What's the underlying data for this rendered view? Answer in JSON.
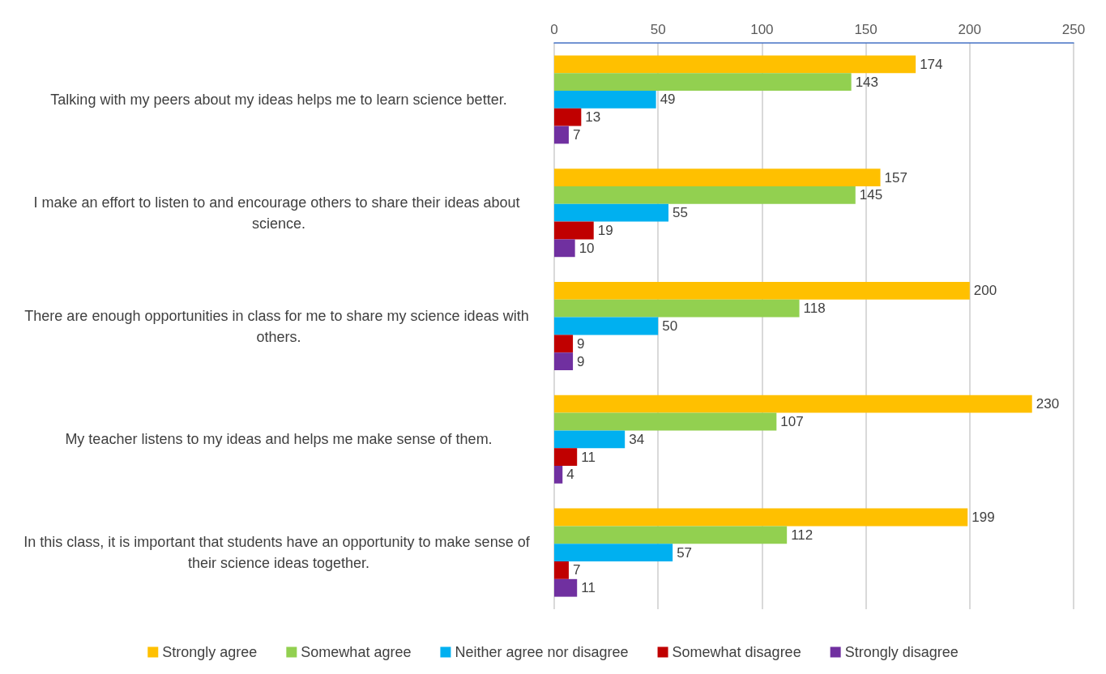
{
  "chart_data": {
    "type": "bar",
    "orientation": "horizontal",
    "categories": [
      "Talking with my peers about my ideas helps me to learn science better.",
      "I make an effort to listen to and encourage others to share their ideas about science.",
      "There are enough opportunities in class for me to share my science ideas with others.",
      "My teacher listens to my ideas and helps me make sense of them.",
      "In this class, it is important that students have an opportunity to make sense of their science ideas together."
    ],
    "series": [
      {
        "name": "Strongly agree",
        "color": "#ffc000",
        "values": [
          174,
          157,
          200,
          230,
          199
        ]
      },
      {
        "name": "Somewhat agree",
        "color": "#92d050",
        "values": [
          143,
          145,
          118,
          107,
          112
        ]
      },
      {
        "name": "Neither agree nor disagree",
        "color": "#00b0f0",
        "values": [
          49,
          55,
          50,
          34,
          57
        ]
      },
      {
        "name": "Somewhat disagree",
        "color": "#c00000",
        "values": [
          13,
          19,
          9,
          11,
          7
        ]
      },
      {
        "name": "Strongly disagree",
        "color": "#7030a0",
        "values": [
          7,
          10,
          9,
          4,
          11
        ]
      }
    ],
    "xlim": [
      0,
      250
    ],
    "xticks": [
      0,
      50,
      100,
      150,
      200,
      250
    ],
    "grid": "x",
    "legend": "bottom",
    "data_labels": true
  }
}
